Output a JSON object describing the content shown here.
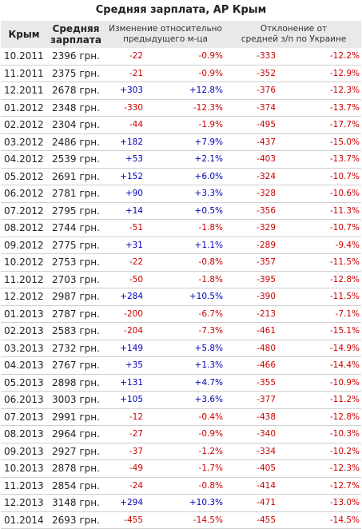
{
  "title": "Средняя зарплата, АР Крым",
  "headers": {
    "month_line1": "Крым",
    "salary_line1": "Средняя",
    "salary_line2": "зарплата",
    "change_line1": "Изменение относительно",
    "change_line2": "предыдущего м-ца",
    "deviation_line1": "Отклонение от",
    "deviation_line2": "средней з/п по Украине"
  },
  "colors": {
    "header_bg": "#e9e9e9",
    "negative": "#cc0000",
    "positive": "#0000bb",
    "row_border": "#cfcfcf"
  },
  "rows": [
    {
      "month": "10.2011",
      "salary": "2396 грн.",
      "change_abs": "-22",
      "change_pct": "-0.9%",
      "dev_abs": "-333",
      "dev_pct": "-12.2%"
    },
    {
      "month": "11.2011",
      "salary": "2375 грн.",
      "change_abs": "-21",
      "change_pct": "-0.9%",
      "dev_abs": "-352",
      "dev_pct": "-12.9%"
    },
    {
      "month": "12.2011",
      "salary": "2678 грн.",
      "change_abs": "+303",
      "change_pct": "+12.8%",
      "dev_abs": "-376",
      "dev_pct": "-12.3%"
    },
    {
      "month": "01.2012",
      "salary": "2348 грн.",
      "change_abs": "-330",
      "change_pct": "-12.3%",
      "dev_abs": "-374",
      "dev_pct": "-13.7%"
    },
    {
      "month": "02.2012",
      "salary": "2304 грн.",
      "change_abs": "-44",
      "change_pct": "-1.9%",
      "dev_abs": "-495",
      "dev_pct": "-17.7%"
    },
    {
      "month": "03.2012",
      "salary": "2486 грн.",
      "change_abs": "+182",
      "change_pct": "+7.9%",
      "dev_abs": "-437",
      "dev_pct": "-15.0%"
    },
    {
      "month": "04.2012",
      "salary": "2539 грн.",
      "change_abs": "+53",
      "change_pct": "+2.1%",
      "dev_abs": "-403",
      "dev_pct": "-13.7%"
    },
    {
      "month": "05.2012",
      "salary": "2691 грн.",
      "change_abs": "+152",
      "change_pct": "+6.0%",
      "dev_abs": "-324",
      "dev_pct": "-10.7%"
    },
    {
      "month": "06.2012",
      "salary": "2781 грн.",
      "change_abs": "+90",
      "change_pct": "+3.3%",
      "dev_abs": "-328",
      "dev_pct": "-10.6%"
    },
    {
      "month": "07.2012",
      "salary": "2795 грн.",
      "change_abs": "+14",
      "change_pct": "+0.5%",
      "dev_abs": "-356",
      "dev_pct": "-11.3%"
    },
    {
      "month": "08.2012",
      "salary": "2744 грн.",
      "change_abs": "-51",
      "change_pct": "-1.8%",
      "dev_abs": "-329",
      "dev_pct": "-10.7%"
    },
    {
      "month": "09.2012",
      "salary": "2775 грн.",
      "change_abs": "+31",
      "change_pct": "+1.1%",
      "dev_abs": "-289",
      "dev_pct": "-9.4%"
    },
    {
      "month": "10.2012",
      "salary": "2753 грн.",
      "change_abs": "-22",
      "change_pct": "-0.8%",
      "dev_abs": "-357",
      "dev_pct": "-11.5%"
    },
    {
      "month": "11.2012",
      "salary": "2703 грн.",
      "change_abs": "-50",
      "change_pct": "-1.8%",
      "dev_abs": "-395",
      "dev_pct": "-12.8%"
    },
    {
      "month": "12.2012",
      "salary": "2987 грн.",
      "change_abs": "+284",
      "change_pct": "+10.5%",
      "dev_abs": "-390",
      "dev_pct": "-11.5%"
    },
    {
      "month": "01.2013",
      "salary": "2787 грн.",
      "change_abs": "-200",
      "change_pct": "-6.7%",
      "dev_abs": "-213",
      "dev_pct": "-7.1%"
    },
    {
      "month": "02.2013",
      "salary": "2583 грн.",
      "change_abs": "-204",
      "change_pct": "-7.3%",
      "dev_abs": "-461",
      "dev_pct": "-15.1%"
    },
    {
      "month": "03.2013",
      "salary": "2732 грн.",
      "change_abs": "+149",
      "change_pct": "+5.8%",
      "dev_abs": "-480",
      "dev_pct": "-14.9%"
    },
    {
      "month": "04.2013",
      "salary": "2767 грн.",
      "change_abs": "+35",
      "change_pct": "+1.3%",
      "dev_abs": "-466",
      "dev_pct": "-14.4%"
    },
    {
      "month": "05.2013",
      "salary": "2898 грн.",
      "change_abs": "+131",
      "change_pct": "+4.7%",
      "dev_abs": "-355",
      "dev_pct": "-10.9%"
    },
    {
      "month": "06.2013",
      "salary": "3003 грн.",
      "change_abs": "+105",
      "change_pct": "+3.6%",
      "dev_abs": "-377",
      "dev_pct": "-11.2%"
    },
    {
      "month": "07.2013",
      "salary": "2991 грн.",
      "change_abs": "-12",
      "change_pct": "-0.4%",
      "dev_abs": "-438",
      "dev_pct": "-12.8%"
    },
    {
      "month": "08.2013",
      "salary": "2964 грн.",
      "change_abs": "-27",
      "change_pct": "-0.9%",
      "dev_abs": "-340",
      "dev_pct": "-10.3%"
    },
    {
      "month": "09.2013",
      "salary": "2927 грн.",
      "change_abs": "-37",
      "change_pct": "-1.2%",
      "dev_abs": "-334",
      "dev_pct": "-10.2%"
    },
    {
      "month": "10.2013",
      "salary": "2878 грн.",
      "change_abs": "-49",
      "change_pct": "-1.7%",
      "dev_abs": "-405",
      "dev_pct": "-12.3%"
    },
    {
      "month": "11.2013",
      "salary": "2854 грн.",
      "change_abs": "-24",
      "change_pct": "-0.8%",
      "dev_abs": "-414",
      "dev_pct": "-12.7%"
    },
    {
      "month": "12.2013",
      "salary": "3148 грн.",
      "change_abs": "+294",
      "change_pct": "+10.3%",
      "dev_abs": "-471",
      "dev_pct": "-13.0%"
    },
    {
      "month": "01.2014",
      "salary": "2693 грн.",
      "change_abs": "-455",
      "change_pct": "-14.5%",
      "dev_abs": "-455",
      "dev_pct": "-14.5%"
    }
  ]
}
